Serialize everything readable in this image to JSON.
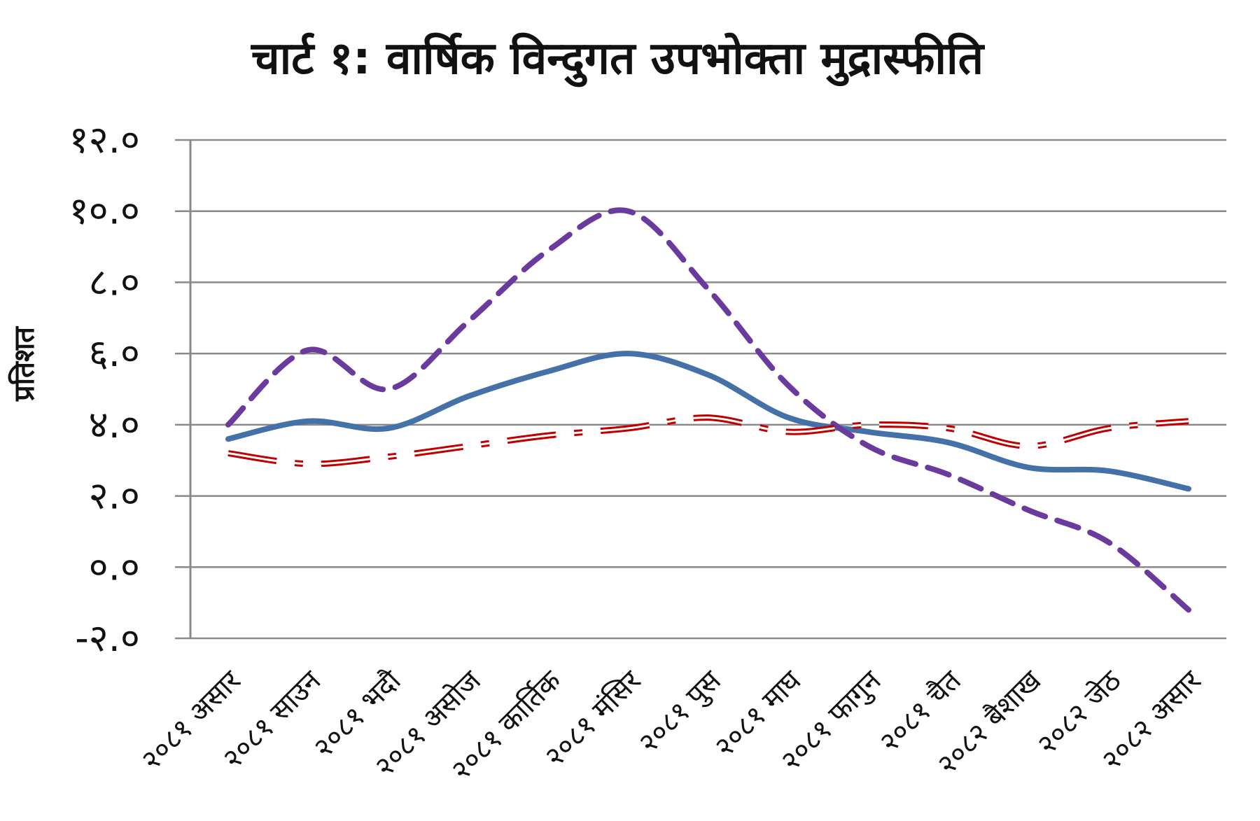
{
  "chart_data": {
    "type": "line",
    "title": "चार्ट १: वार्षिक विन्दुगत उपभोक्ता मुद्रास्फीति",
    "ylabel": "प्रतिशत",
    "xlabel": "",
    "ylim": [
      -2,
      12
    ],
    "yticks": [
      -2,
      0,
      2,
      4,
      6,
      8,
      10,
      12
    ],
    "ytick_labels": [
      "-२.०",
      "०.०",
      "२.०",
      "४.०",
      "६.०",
      "८.०",
      "१०.०",
      "१२.०"
    ],
    "grid": true,
    "legend": "none",
    "categories": [
      "२०८१ असार",
      "२०८१ साउन",
      "२०८१ भदौ",
      "२०८१ असोज",
      "२०८१ कार्तिक",
      "२०८१ मंसिर",
      "२०८१ पुस",
      "२०८१ माघ",
      "२०८१ फागुन",
      "२०८१ चैत",
      "२०८२ बैशाख",
      "२०८२ जेठ",
      "२०८२ असार"
    ],
    "series": [
      {
        "style": "solid",
        "color": "#4472a8",
        "values": [
          3.6,
          4.1,
          3.9,
          4.8,
          5.5,
          6.0,
          5.4,
          4.2,
          3.8,
          3.5,
          2.8,
          2.7,
          2.2
        ]
      },
      {
        "style": "dashed",
        "color": "#6a3a9c",
        "values": [
          4.0,
          6.1,
          5.0,
          6.9,
          8.9,
          10.0,
          7.8,
          5.1,
          3.4,
          2.6,
          1.6,
          0.7,
          -1.2
        ]
      },
      {
        "style": "double-dash-dot",
        "color": "#c00000",
        "values": [
          3.2,
          2.9,
          3.1,
          3.4,
          3.7,
          3.9,
          4.2,
          3.8,
          4.0,
          3.9,
          3.4,
          3.9,
          4.1
        ]
      }
    ]
  }
}
